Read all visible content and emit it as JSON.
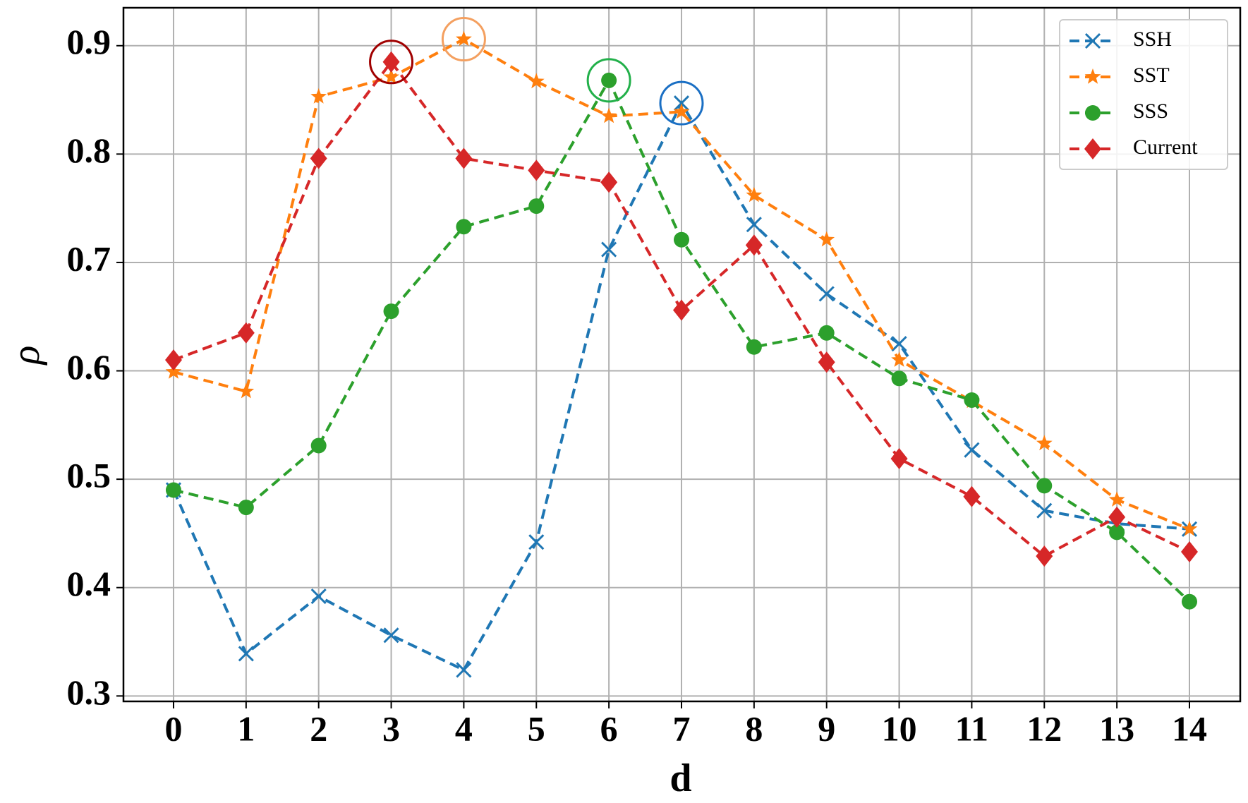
{
  "chart_data": {
    "type": "line",
    "xlabel": "d",
    "ylabel": "ρ",
    "x": [
      0,
      1,
      2,
      3,
      4,
      5,
      6,
      7,
      8,
      9,
      10,
      11,
      12,
      13,
      14
    ],
    "xlim": [
      -0.69,
      14.7
    ],
    "xticks": [
      0,
      1,
      2,
      3,
      4,
      5,
      6,
      7,
      8,
      9,
      10,
      11,
      12,
      13,
      14
    ],
    "ylim": [
      0.295,
      0.935
    ],
    "yticks": [
      0.3,
      0.4,
      0.5,
      0.6,
      0.7,
      0.8,
      0.9
    ],
    "grid": true,
    "legend": "upper right",
    "highlight_max": true,
    "series": [
      {
        "name": "SSH",
        "color": "#1f77b4",
        "marker": "x",
        "highlight_color": "#1a6fc4",
        "values": [
          0.49,
          0.339,
          0.392,
          0.356,
          0.324,
          0.442,
          0.712,
          0.847,
          0.735,
          0.671,
          0.625,
          0.527,
          0.471,
          0.459,
          0.454
        ]
      },
      {
        "name": "SST",
        "color": "#ff7f0e",
        "marker": "star",
        "highlight_color": "#f4a060",
        "values": [
          0.599,
          0.581,
          0.853,
          0.871,
          0.906,
          0.867,
          0.835,
          0.839,
          0.762,
          0.721,
          0.61,
          0.572,
          0.533,
          0.481,
          0.454
        ]
      },
      {
        "name": "SSS",
        "color": "#2ca02c",
        "marker": "circle",
        "highlight_color": "#22b04a",
        "values": [
          0.49,
          0.474,
          0.531,
          0.655,
          0.733,
          0.752,
          0.868,
          0.721,
          0.622,
          0.635,
          0.593,
          0.573,
          0.494,
          0.451,
          0.387
        ]
      },
      {
        "name": "Current",
        "color": "#d62728",
        "marker": "diamond",
        "highlight_color": "#a00000",
        "values": [
          0.61,
          0.635,
          0.796,
          0.885,
          0.796,
          0.785,
          0.774,
          0.656,
          0.716,
          0.608,
          0.519,
          0.484,
          0.429,
          0.465,
          0.433
        ]
      }
    ]
  }
}
